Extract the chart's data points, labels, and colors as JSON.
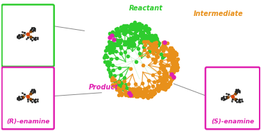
{
  "reactant_color": "#2ecc2e",
  "intermediate_color": "#e8901a",
  "product_color": "#e020b0",
  "bg_color": "#ffffff",
  "box_color_green": "#2ecc2e",
  "box_color_magenta": "#e020b0",
  "label_reactant": "Reactant",
  "label_intermediate": "Intermediate",
  "label_product": "Product",
  "label_R_enamine": "(R)-enamine",
  "label_S_enamine": "(S)-enamine",
  "figsize": [
    3.76,
    1.89
  ],
  "dpi": 100
}
